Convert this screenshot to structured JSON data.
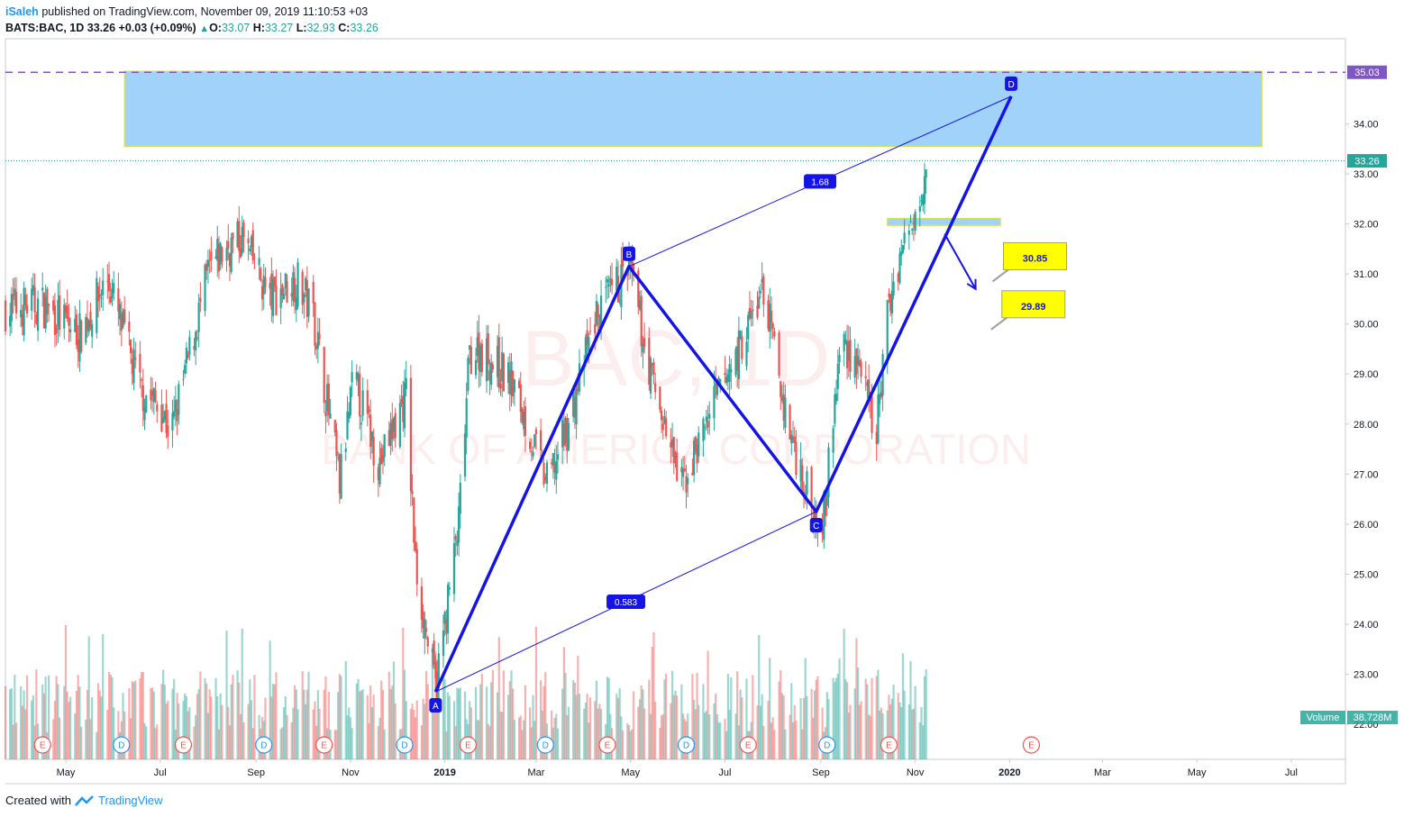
{
  "header": {
    "publisher": "iSaleh",
    "published_text": "published on TradingView.com, November 09, 2019 11:10:53 +03",
    "symbol": "BATS:BAC, 1D",
    "last": "33.26",
    "change": "+0.03 (+0.09%)",
    "open_label": "O:",
    "open": "33.07",
    "high_label": "H:",
    "high": "33.27",
    "low_label": "L:",
    "low": "32.93",
    "close_label": "C:",
    "close": "33.26"
  },
  "watermark": {
    "symbol": "BAC, 1D",
    "name": "BANK OF AMERICA CORPORATION"
  },
  "footer": {
    "created_with": "Created with",
    "brand": "TradingView"
  },
  "colors": {
    "up": "#26a69a",
    "down": "#ef5350",
    "pattern": "#1414e6",
    "zone": "#90caf9",
    "dashed": "#7e57c2",
    "callout": "#ffff00"
  },
  "chart_data": {
    "type": "candlestick",
    "symbol": "BATS:BAC",
    "interval": "1D",
    "y_ticks": [
      22.0,
      23.0,
      24.0,
      25.0,
      26.0,
      27.0,
      28.0,
      29.0,
      30.0,
      31.0,
      32.0,
      33.0,
      34.0
    ],
    "ylim": [
      21.3,
      35.7
    ],
    "x_ticks": [
      "May",
      "Jul",
      "Sep",
      "Nov",
      "2019",
      "Mar",
      "May",
      "Jul",
      "Sep",
      "Nov",
      "2020",
      "Mar",
      "May",
      "Jul"
    ],
    "x_tick_dates": [
      "2018-05-01",
      "2018-07-01",
      "2018-09-01",
      "2018-11-01",
      "2019-01-01",
      "2019-03-01",
      "2019-05-01",
      "2019-07-01",
      "2019-09-01",
      "2019-11-01",
      "2020-01-01",
      "2020-03-01",
      "2020-05-01",
      "2020-07-01"
    ],
    "xlim": [
      "2018-03-23",
      "2020-08-05"
    ],
    "price_series": [
      {
        "date": "2018-03-23",
        "close": 30.3
      },
      {
        "date": "2018-04-15",
        "close": 30.4
      },
      {
        "date": "2018-05-10",
        "close": 29.8
      },
      {
        "date": "2018-05-28",
        "close": 30.9
      },
      {
        "date": "2018-06-18",
        "close": 28.7
      },
      {
        "date": "2018-07-02",
        "close": 28.3
      },
      {
        "date": "2018-07-08",
        "close": 27.8
      },
      {
        "date": "2018-08-01",
        "close": 31.0
      },
      {
        "date": "2018-08-12",
        "close": 31.5
      },
      {
        "date": "2018-08-23",
        "close": 31.7
      },
      {
        "date": "2018-09-10",
        "close": 30.5
      },
      {
        "date": "2018-09-27",
        "close": 30.9
      },
      {
        "date": "2018-10-08",
        "close": 30.2
      },
      {
        "date": "2018-10-25",
        "close": 26.8
      },
      {
        "date": "2018-11-03",
        "close": 28.9
      },
      {
        "date": "2018-11-20",
        "close": 27.2
      },
      {
        "date": "2018-12-07",
        "close": 28.6
      },
      {
        "date": "2018-12-13",
        "close": 25.2
      },
      {
        "date": "2018-12-26",
        "close": 22.7
      },
      {
        "date": "2019-01-10",
        "close": 26.0
      },
      {
        "date": "2019-01-17",
        "close": 29.4
      },
      {
        "date": "2019-01-24",
        "close": 29.5
      },
      {
        "date": "2019-02-14",
        "close": 28.8
      },
      {
        "date": "2019-03-08",
        "close": 26.8
      },
      {
        "date": "2019-03-22",
        "close": 28.0
      },
      {
        "date": "2019-04-08",
        "close": 30.1
      },
      {
        "date": "2019-04-30",
        "close": 31.1
      },
      {
        "date": "2019-05-14",
        "close": 29.0
      },
      {
        "date": "2019-06-03",
        "close": 26.7
      },
      {
        "date": "2019-06-21",
        "close": 28.2
      },
      {
        "date": "2019-07-10",
        "close": 29.5
      },
      {
        "date": "2019-07-26",
        "close": 30.7
      },
      {
        "date": "2019-08-09",
        "close": 28.2
      },
      {
        "date": "2019-08-26",
        "close": 26.3
      },
      {
        "date": "2019-09-03",
        "close": 26.2
      },
      {
        "date": "2019-09-14",
        "close": 29.7
      },
      {
        "date": "2019-09-26",
        "close": 29.2
      },
      {
        "date": "2019-10-06",
        "close": 27.6
      },
      {
        "date": "2019-10-15",
        "close": 30.4
      },
      {
        "date": "2019-10-22",
        "close": 31.4
      },
      {
        "date": "2019-10-28",
        "close": 31.8
      },
      {
        "date": "2019-11-08",
        "close": 33.26
      }
    ],
    "volume": {
      "label": "Volume",
      "last": "38.728M"
    },
    "price_labels": {
      "last": "33.26",
      "dashed_level": "35.03"
    },
    "levels": [
      {
        "name": "dashed_resistance",
        "value": 35.03
      },
      {
        "name": "last_price",
        "value": 33.26
      }
    ],
    "zones": [
      {
        "name": "upper_zone",
        "from": "2018-06-08",
        "to": "2020-06-12",
        "low": 33.55,
        "high": 35.05
      },
      {
        "name": "lower_zone",
        "from": "2019-10-14",
        "to": "2019-12-26",
        "low": 31.97,
        "high": 32.11
      }
    ],
    "pattern": {
      "points": [
        {
          "label": "A",
          "date": "2018-12-26",
          "value": 22.65
        },
        {
          "label": "B",
          "date": "2019-04-30",
          "value": 31.15
        },
        {
          "label": "C",
          "date": "2019-08-29",
          "value": 26.25
        },
        {
          "label": "D",
          "date": "2020-01-02",
          "value": 34.55
        }
      ],
      "ratios": [
        {
          "label": "0.583",
          "between": "A-C"
        },
        {
          "label": "1.68",
          "between": "B-D"
        }
      ]
    },
    "projection_arrow": {
      "from_date": "2019-11-20",
      "from_value": 31.8,
      "to_date": "2019-12-10",
      "to_value": 30.7
    },
    "targets": [
      {
        "label": "30.85",
        "date": "2019-12-21",
        "value": 30.85
      },
      {
        "label": "29.89",
        "date": "2019-12-20",
        "value": 29.89
      }
    ],
    "events": [
      {
        "type": "E",
        "date": "2018-04-16"
      },
      {
        "type": "D",
        "date": "2018-06-06"
      },
      {
        "type": "E",
        "date": "2018-07-16"
      },
      {
        "type": "D",
        "date": "2018-09-06"
      },
      {
        "type": "E",
        "date": "2018-10-15"
      },
      {
        "type": "D",
        "date": "2018-12-06"
      },
      {
        "type": "E",
        "date": "2019-01-16"
      },
      {
        "type": "D",
        "date": "2019-03-07"
      },
      {
        "type": "E",
        "date": "2019-04-16"
      },
      {
        "type": "D",
        "date": "2019-06-06"
      },
      {
        "type": "E",
        "date": "2019-07-16"
      },
      {
        "type": "D",
        "date": "2019-09-05"
      },
      {
        "type": "E",
        "date": "2019-10-15"
      },
      {
        "type": "E",
        "date": "2020-01-15"
      }
    ]
  }
}
